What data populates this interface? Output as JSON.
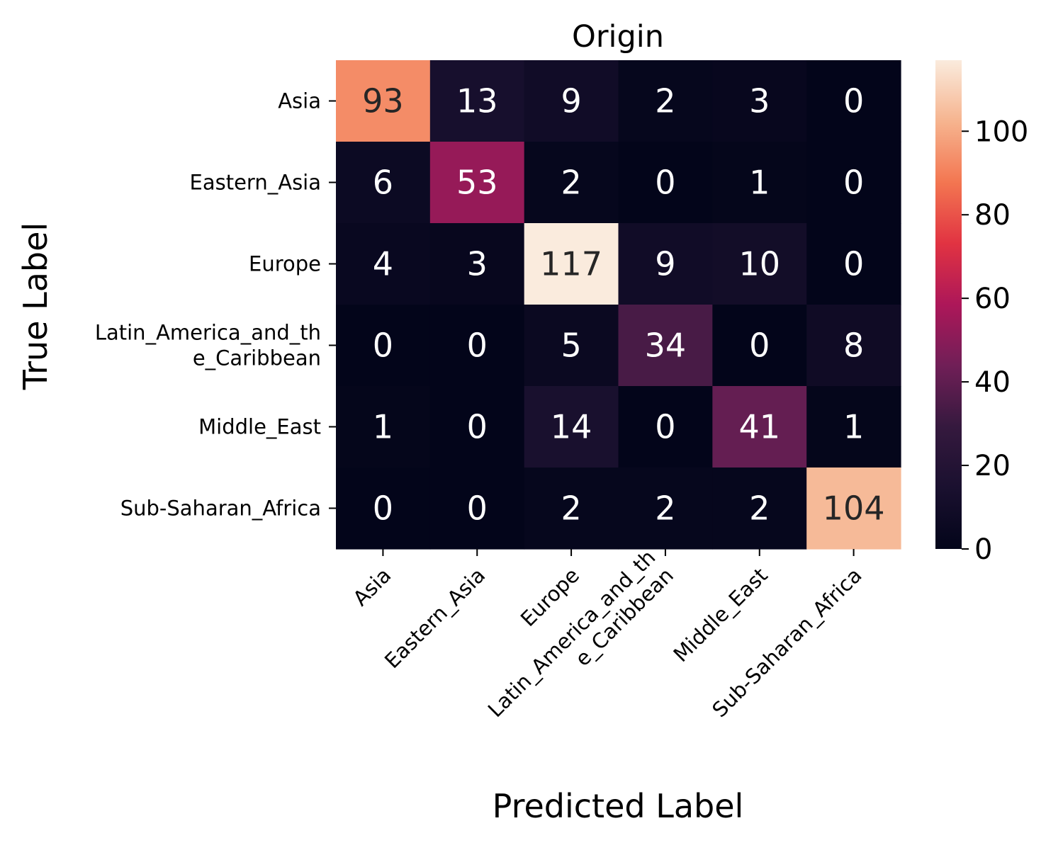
{
  "chart_data": {
    "type": "heatmap",
    "title": "Origin",
    "xlabel": "Predicted Label",
    "ylabel": "True Label",
    "x_categories": [
      "Asia",
      "Eastern_Asia",
      "Europe",
      "Latin_America_and_th\ne_Caribbean",
      "Middle_East",
      "Sub-Saharan_Africa"
    ],
    "y_categories": [
      "Asia",
      "Eastern_Asia",
      "Europe",
      "Latin_America_and_th\ne_Caribbean",
      "Middle_East",
      "Sub-Saharan_Africa"
    ],
    "values": [
      [
        93,
        13,
        9,
        2,
        3,
        0
      ],
      [
        6,
        53,
        2,
        0,
        1,
        0
      ],
      [
        4,
        3,
        117,
        9,
        10,
        0
      ],
      [
        0,
        0,
        5,
        34,
        0,
        8
      ],
      [
        1,
        0,
        14,
        0,
        41,
        1
      ],
      [
        0,
        0,
        2,
        2,
        2,
        104
      ]
    ],
    "colorbar": {
      "min": 0,
      "max": 117,
      "ticks": [
        0,
        20,
        40,
        60,
        80,
        100
      ],
      "colormap": "rocket",
      "colors": [
        "#03051a",
        "#1a102f",
        "#35193e",
        "#701f57",
        "#ad1759",
        "#e13342",
        "#f37651",
        "#f6b48f",
        "#faebdd"
      ]
    },
    "annotation_colors": {
      "dark_cell_text": "#ffffff",
      "light_cell_text": "#262626"
    }
  }
}
